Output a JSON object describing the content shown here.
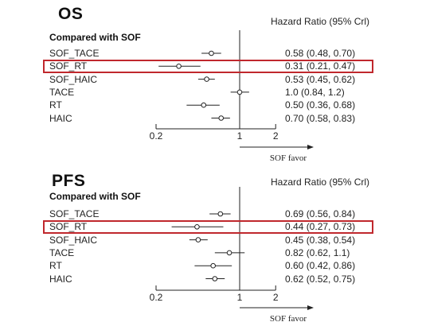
{
  "chart_data": [
    {
      "type": "forest",
      "title": "OS",
      "subtitle": "Compared with SOF",
      "hr_header": "Hazard Ratio (95% Crl)",
      "x_ticks": [
        "0.2",
        "1",
        "2"
      ],
      "x_tick_values": [
        0.2,
        1,
        2
      ],
      "xlim": [
        0.2,
        2
      ],
      "x_scale": "log",
      "favor_label": "SOF favor",
      "highlighted_row": "SOF_RT",
      "rows": [
        {
          "label": "SOF_TACE",
          "hr": 0.58,
          "lo": 0.48,
          "hi": 0.7,
          "text": "0.58 (0.48, 0.70)"
        },
        {
          "label": "SOF_RT",
          "hr": 0.31,
          "lo": 0.21,
          "hi": 0.47,
          "text": "0.31 (0.21, 0.47)"
        },
        {
          "label": "SOF_HAIC",
          "hr": 0.53,
          "lo": 0.45,
          "hi": 0.62,
          "text": "0.53 (0.45, 0.62)"
        },
        {
          "label": "TACE",
          "hr": 1.0,
          "lo": 0.84,
          "hi": 1.2,
          "text": "1.0 (0.84, 1.2)"
        },
        {
          "label": "RT",
          "hr": 0.5,
          "lo": 0.36,
          "hi": 0.68,
          "text": "0.50 (0.36, 0.68)"
        },
        {
          "label": "HAIC",
          "hr": 0.7,
          "lo": 0.58,
          "hi": 0.83,
          "text": "0.70 (0.58, 0.83)"
        }
      ]
    },
    {
      "type": "forest",
      "title": "PFS",
      "subtitle": "Compared with SOF",
      "hr_header": "Hazard Ratio (95% Crl)",
      "x_ticks": [
        "0.2",
        "1",
        "2"
      ],
      "x_tick_values": [
        0.2,
        1,
        2
      ],
      "xlim": [
        0.2,
        2
      ],
      "x_scale": "log",
      "favor_label": "SOF favor",
      "highlighted_row": "SOF_RT",
      "rows": [
        {
          "label": "SOF_TACE",
          "hr": 0.69,
          "lo": 0.56,
          "hi": 0.84,
          "text": "0.69 (0.56, 0.84)"
        },
        {
          "label": "SOF_RT",
          "hr": 0.44,
          "lo": 0.27,
          "hi": 0.73,
          "text": "0.44 (0.27, 0.73)"
        },
        {
          "label": "SOF_HAIC",
          "hr": 0.45,
          "lo": 0.38,
          "hi": 0.54,
          "text": "0.45 (0.38, 0.54)"
        },
        {
          "label": "TACE",
          "hr": 0.82,
          "lo": 0.62,
          "hi": 1.1,
          "text": "0.82 (0.62, 1.1)"
        },
        {
          "label": "RT",
          "hr": 0.6,
          "lo": 0.42,
          "hi": 0.86,
          "text": "0.60 (0.42, 0.86)"
        },
        {
          "label": "HAIC",
          "hr": 0.62,
          "lo": 0.52,
          "hi": 0.75,
          "text": "0.62 (0.52, 0.75)"
        }
      ]
    }
  ]
}
